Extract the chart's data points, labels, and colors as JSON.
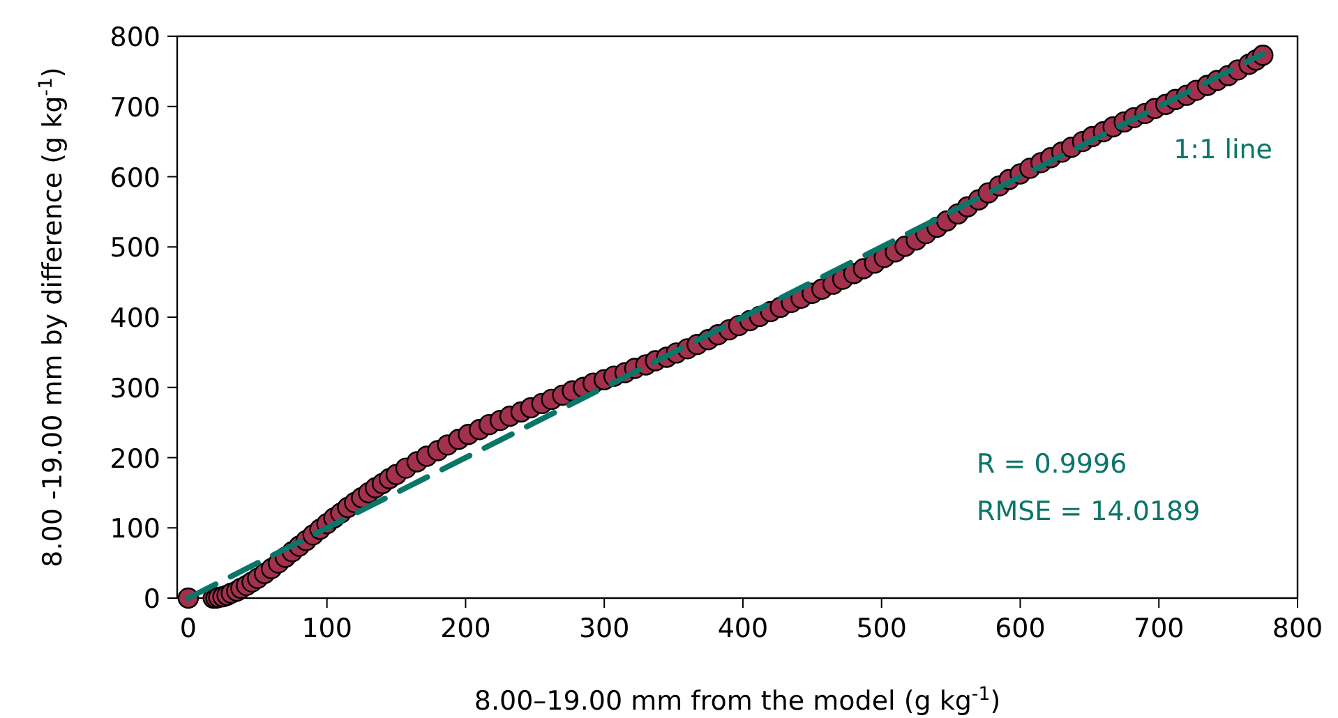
{
  "chart_data": {
    "type": "scatter",
    "xlabel": "8.00–19.00 mm from the model (g kg$^{-1}$)",
    "ylabel": "8.00 -19.00 mm by difference (g kg$^{-1}$)",
    "xlim": [
      -8,
      800
    ],
    "ylim": [
      0,
      800
    ],
    "xticks": [
      0,
      100,
      200,
      300,
      400,
      500,
      600,
      700,
      800
    ],
    "yticks": [
      0,
      100,
      200,
      300,
      400,
      500,
      600,
      700,
      800
    ],
    "grid": false,
    "legend": false,
    "marker": "circle",
    "annotations": [
      "R = 0.9996",
      "RMSE = 14.0189"
    ],
    "series": [
      {
        "color": "#a3304c",
        "x": [
          0,
          18,
          20,
          22,
          25,
          28,
          31,
          35,
          38,
          42,
          46,
          50,
          55,
          60,
          65,
          70,
          75,
          80,
          85,
          90,
          95,
          100,
          105,
          110,
          115,
          120,
          125,
          130,
          135,
          140,
          145,
          150,
          157,
          165,
          172,
          180,
          187,
          195,
          202,
          210,
          217,
          225,
          232,
          240,
          247,
          255,
          262,
          270,
          277,
          285,
          292,
          300,
          307,
          315,
          322,
          330,
          337,
          345,
          352,
          360,
          367,
          375,
          382,
          390,
          397,
          405,
          412,
          420,
          427,
          435,
          442,
          450,
          457,
          465,
          472,
          480,
          487,
          495,
          502,
          510,
          517,
          525,
          532,
          540,
          547,
          555,
          562,
          570,
          577,
          585,
          592,
          600,
          607,
          615,
          622,
          630,
          637,
          645,
          652,
          660,
          667,
          675,
          682,
          690,
          697,
          705,
          712,
          720,
          727,
          735,
          742,
          750,
          757,
          765,
          770,
          775
        ],
        "values": [
          0,
          0,
          0,
          1,
          2,
          4,
          7,
          10,
          14,
          18,
          23,
          28,
          35,
          42,
          50,
          58,
          66,
          74,
          82,
          90,
          98,
          106,
          114,
          121,
          129,
          136,
          143,
          150,
          157,
          163,
          170,
          176,
          185,
          194,
          202,
          210,
          218,
          226,
          233,
          240,
          247,
          253,
          259,
          265,
          271,
          277,
          283,
          289,
          295,
          300,
          306,
          311,
          316,
          321,
          327,
          332,
          338,
          343,
          349,
          355,
          361,
          368,
          375,
          382,
          388,
          395,
          401,
          408,
          414,
          421,
          427,
          434,
          440,
          447,
          454,
          462,
          469,
          477,
          485,
          493,
          501,
          510,
          519,
          528,
          537,
          547,
          557,
          567,
          577,
          587,
          596,
          604,
          612,
          620,
          627,
          635,
          642,
          650,
          657,
          664,
          671,
          678,
          684,
          690,
          697,
          703,
          710,
          716,
          723,
          730,
          737,
          744,
          752,
          760,
          766,
          773
        ]
      },
      {
        "type": "line",
        "name": "1:1 line",
        "color": "#0a7569",
        "line_style": "dashed",
        "marker": "none",
        "x": [
          0,
          775
        ],
        "values": [
          0,
          775
        ]
      }
    ]
  }
}
